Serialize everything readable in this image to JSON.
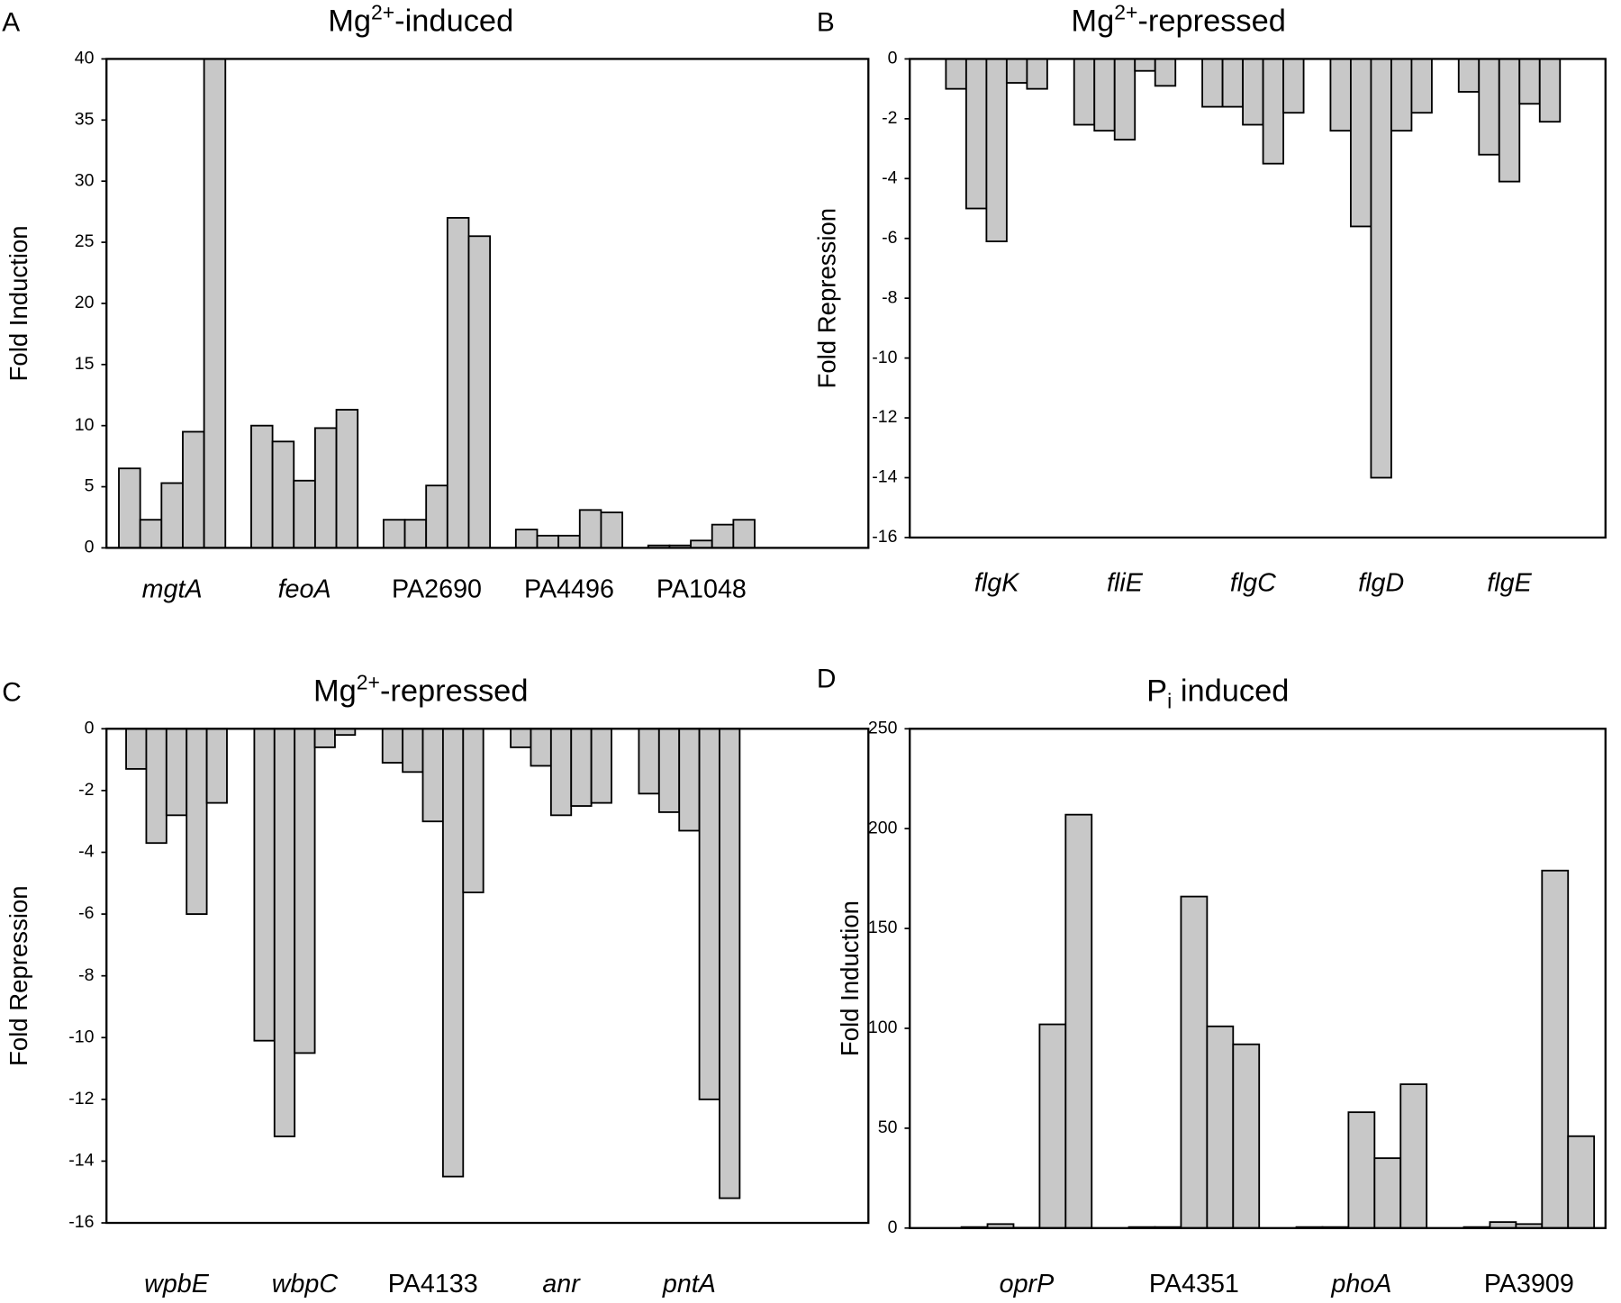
{
  "chart_data": [
    {
      "type": "bar",
      "panel": "A",
      "title": [
        "Mg",
        "2+",
        "-induced"
      ],
      "title_script": "super",
      "ylabel": "Fold Induction",
      "categories": [
        "mgtA",
        "feoA",
        "PA2690",
        "PA4496",
        "PA1048"
      ],
      "italic": [
        true,
        true,
        false,
        false,
        false
      ],
      "values": [
        [
          6.5,
          2.3,
          5.3,
          9.5,
          40
        ],
        [
          10,
          8.7,
          5.5,
          9.8,
          11.3
        ],
        [
          2.3,
          2.3,
          5.1,
          27,
          25.5
        ],
        [
          1.5,
          1,
          1,
          3.1,
          2.9
        ],
        [
          0.2,
          0.2,
          0.6,
          1.9,
          2.3
        ]
      ],
      "color": "#c8c8c8",
      "ylim": [
        0,
        40
      ],
      "yticks": [
        0,
        5,
        10,
        15,
        20,
        25,
        30,
        35,
        40
      ]
    },
    {
      "type": "bar",
      "panel": "B",
      "title": [
        "Mg",
        "2+",
        "-repressed"
      ],
      "title_script": "super",
      "ylabel": "Fold Repression",
      "categories": [
        "flgK",
        "fliE",
        "flgC",
        "flgD",
        "flgE"
      ],
      "italic": [
        true,
        true,
        true,
        true,
        true
      ],
      "values": [
        [
          -1,
          -5,
          -6.1,
          -0.8,
          -1
        ],
        [
          -2.2,
          -2.4,
          -2.7,
          -0.4,
          -0.9
        ],
        [
          -1.6,
          -1.6,
          -2.2,
          -3.5,
          -1.8
        ],
        [
          -2.4,
          -5.6,
          -14,
          -2.4,
          -1.8
        ],
        [
          -1.1,
          -3.2,
          -4.1,
          -1.5,
          -2.1
        ]
      ],
      "color": "#c8c8c8",
      "ylim": [
        -16,
        0
      ],
      "yticks": [
        0,
        -2,
        -4,
        -6,
        -8,
        -10,
        -12,
        -14,
        -16
      ]
    },
    {
      "type": "bar",
      "panel": "C",
      "title": [
        "Mg",
        "2+",
        "-repressed"
      ],
      "title_script": "super",
      "ylabel": "Fold Repression",
      "categories": [
        "wpbE",
        "wbpC",
        "PA4133",
        "anr",
        "pntA"
      ],
      "italic": [
        true,
        true,
        false,
        true,
        true
      ],
      "values": [
        [
          -1.3,
          -3.7,
          -2.8,
          -6,
          -2.4
        ],
        [
          -10.1,
          -13.2,
          -10.5,
          -0.6,
          -0.2
        ],
        [
          -1.1,
          -1.4,
          -3,
          -14.5,
          -5.3
        ],
        [
          -0.6,
          -1.2,
          -2.8,
          -2.5,
          -2.4
        ],
        [
          -2.1,
          -2.7,
          -3.3,
          -12,
          -15.2
        ]
      ],
      "color": "#c8c8c8",
      "ylim": [
        -16,
        0
      ],
      "yticks": [
        0,
        -2,
        -4,
        -6,
        -8,
        -10,
        -12,
        -14,
        -16
      ]
    },
    {
      "type": "bar",
      "panel": "D",
      "title": [
        "P",
        "i",
        " induced"
      ],
      "title_script": "sub",
      "ylabel": "Fold Induction",
      "categories": [
        "oprP",
        "PA4351",
        "phoA",
        "PA3909"
      ],
      "italic": [
        true,
        false,
        true,
        false
      ],
      "values": [
        [
          0.5,
          2,
          0.2,
          102,
          207
        ],
        [
          0.5,
          0.5,
          166,
          101,
          92
        ],
        [
          0.5,
          0.5,
          58,
          35,
          72
        ],
        [
          0.5,
          3,
          2,
          179,
          46
        ]
      ],
      "color": "#c8c8c8",
      "ylim": [
        0,
        250
      ],
      "yticks": [
        0,
        50,
        100,
        150,
        200,
        250
      ]
    }
  ]
}
